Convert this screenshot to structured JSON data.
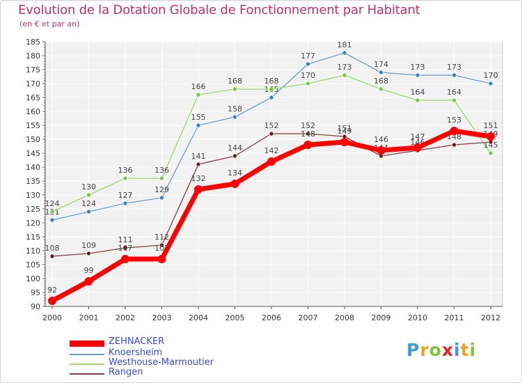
{
  "header": {
    "title": "Evolution de la Dotation Globale de Fonctionnement par Habitant",
    "subtitle": "(en € et par an)"
  },
  "logo": {
    "text": "Proxiti",
    "letters": [
      "P",
      "r",
      "o",
      "x",
      "i",
      "t",
      "i"
    ],
    "colors": [
      "#3c9ad6",
      "#f0a020",
      "#7cc441",
      "#e0262b",
      "#3c9ad6",
      "#f0a020",
      "#7cc441"
    ]
  },
  "chart_data": {
    "type": "line",
    "title": "Evolution de la Dotation Globale de Fonctionnement par Habitant",
    "subtitle": "(en € et par an)",
    "xlabel": "",
    "ylabel": "",
    "x": [
      2000,
      2001,
      2002,
      2003,
      2004,
      2005,
      2006,
      2007,
      2008,
      2009,
      2010,
      2011,
      2012
    ],
    "x_labels": [
      "2000",
      "2001",
      "2002",
      "2003",
      "2004",
      "2005",
      "2006",
      "2007",
      "2008",
      "2009",
      "2010",
      "2011",
      "2012"
    ],
    "ylim": [
      90,
      185
    ],
    "yticks": [
      90,
      95,
      100,
      105,
      110,
      115,
      120,
      125,
      130,
      135,
      140,
      145,
      150,
      155,
      160,
      165,
      170,
      175,
      180,
      185
    ],
    "grid": true,
    "legend_position": "bottom-left",
    "series": [
      {
        "name": "ZEHNACKER",
        "color": "#ff0000",
        "marker": "#ff0000",
        "emphasis": true,
        "values": [
          92,
          99,
          107,
          107,
          132,
          134,
          142,
          148,
          149,
          146,
          147,
          153,
          151
        ]
      },
      {
        "name": "Knoersheim",
        "color": "#6a9ed0",
        "marker": "#3c7fc4",
        "emphasis": false,
        "values": [
          121,
          124,
          127,
          129,
          155,
          158,
          165,
          177,
          181,
          174,
          173,
          173,
          170
        ]
      },
      {
        "name": "Westhouse-Marmoutier",
        "color": "#9ed86a",
        "marker": "#7cc441",
        "emphasis": false,
        "values": [
          124,
          130,
          136,
          136,
          166,
          168,
          168,
          170,
          173,
          168,
          164,
          164,
          145
        ]
      },
      {
        "name": "Rangen",
        "color": "#8a3a3a",
        "marker": "#6b1e1e",
        "emphasis": false,
        "values": [
          108,
          109,
          111,
          112,
          141,
          144,
          152,
          152,
          151,
          144,
          146,
          148,
          149
        ]
      }
    ]
  }
}
